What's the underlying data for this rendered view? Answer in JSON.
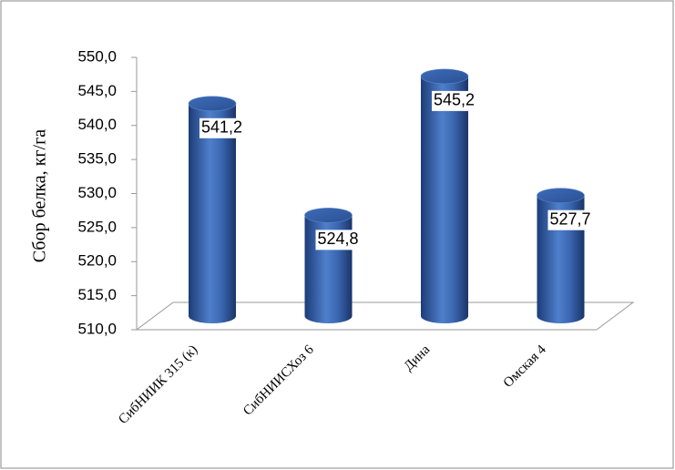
{
  "chart_data": {
    "type": "cylinder-bar",
    "y_label": "Сбор белка, кг/га",
    "categories": [
      "СибНИИК 315 (к)",
      "СибНИИСХоз 6",
      "Дина",
      "Омская 4"
    ],
    "values": [
      541.2,
      524.8,
      545.2,
      527.7
    ],
    "value_labels": [
      "541,2",
      "524,8",
      "545,2",
      "527,7"
    ],
    "color": "#3a66b0",
    "ylim": [
      510,
      550
    ],
    "yticks": [
      {
        "value": 510,
        "label": "510,0"
      },
      {
        "value": 515,
        "label": "515,0"
      },
      {
        "value": 520,
        "label": "520,0"
      },
      {
        "value": 525,
        "label": "525,0"
      },
      {
        "value": 530,
        "label": "530,0"
      },
      {
        "value": 535,
        "label": "535,0"
      },
      {
        "value": 540,
        "label": "540,0"
      },
      {
        "value": 545,
        "label": "545,0"
      },
      {
        "value": 550,
        "label": "550,0"
      }
    ],
    "grid": false
  }
}
